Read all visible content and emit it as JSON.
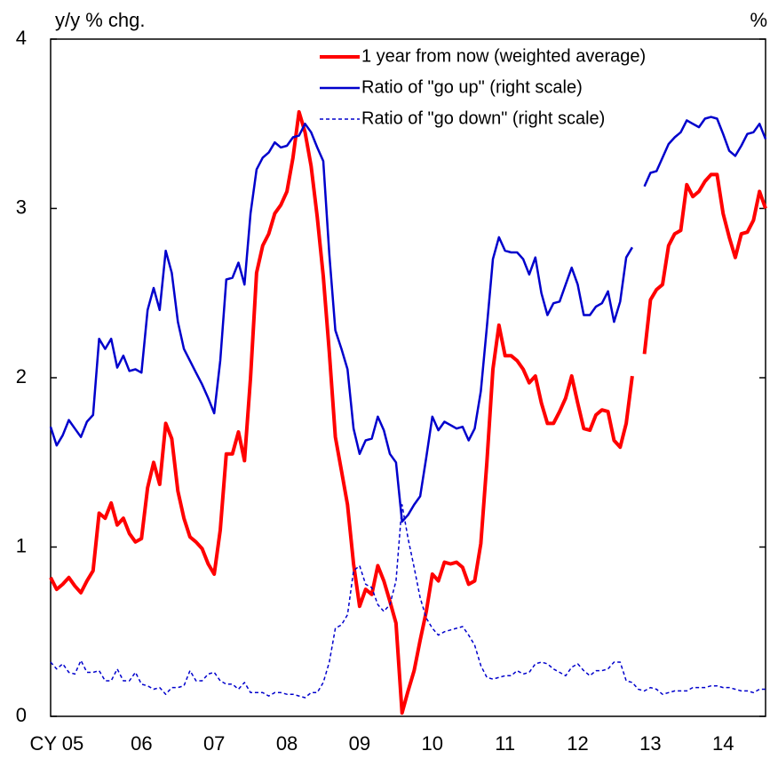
{
  "chart_data": {
    "type": "line",
    "y_label": "y/y % chg.",
    "y2_label": "%",
    "xlim": [
      0,
      118
    ],
    "xticks": [
      {
        "value": 1,
        "label": "CY 05"
      },
      {
        "value": 15,
        "label": "06"
      },
      {
        "value": 27,
        "label": "07"
      },
      {
        "value": 39,
        "label": "08"
      },
      {
        "value": 51,
        "label": "09"
      },
      {
        "value": 63,
        "label": "10"
      },
      {
        "value": 75,
        "label": "11"
      },
      {
        "value": 87,
        "label": "12"
      },
      {
        "value": 99,
        "label": "13"
      },
      {
        "value": 111,
        "label": "14"
      }
    ],
    "ylim": [
      0,
      4
    ],
    "yticks": [
      0,
      1,
      2,
      3,
      4
    ],
    "legend": "upper right",
    "series": [
      {
        "name": "1 year from now (weighted average)",
        "color": "#ff0000",
        "width": 4,
        "line_style": "solid",
        "values": [
          0.82,
          0.75,
          0.78,
          0.82,
          0.77,
          0.73,
          0.8,
          0.86,
          1.2,
          1.17,
          1.26,
          1.13,
          1.17,
          1.08,
          1.03,
          1.05,
          1.35,
          1.5,
          1.37,
          1.73,
          1.64,
          1.33,
          1.17,
          1.06,
          1.03,
          0.99,
          0.9,
          0.84,
          1.1,
          1.55,
          1.55,
          1.68,
          1.51,
          2.0,
          2.62,
          2.78,
          2.85,
          2.97,
          3.02,
          3.1,
          3.3,
          3.57,
          3.45,
          3.25,
          2.95,
          2.6,
          2.15,
          1.65,
          1.45,
          1.25,
          0.9,
          0.65,
          0.75,
          0.72,
          0.89,
          0.8,
          0.68,
          0.55,
          0.02,
          0.15,
          0.27,
          0.45,
          0.62,
          0.84,
          0.8,
          0.91,
          0.9,
          0.91,
          0.88,
          0.78,
          0.8,
          1.02,
          1.5,
          2.05,
          2.31,
          2.13,
          2.13,
          2.1,
          2.05,
          1.97,
          2.01,
          1.85,
          1.73,
          1.73,
          1.8,
          1.88,
          2.01,
          1.85,
          1.7,
          1.69,
          1.78,
          1.81,
          1.8,
          1.63,
          1.59,
          1.73,
          2.01,
          null,
          2.14,
          2.46,
          2.52,
          2.55,
          2.78,
          2.85,
          2.87,
          3.14,
          3.07,
          3.1,
          3.16,
          3.2,
          3.2,
          2.97,
          2.83,
          2.71,
          2.85,
          2.86,
          2.93,
          3.1,
          3.0
        ]
      },
      {
        "name": "Ratio of \"go up\" (right scale)",
        "color": "#0000cc",
        "width": 2.5,
        "line_style": "solid",
        "values": [
          1.71,
          1.6,
          1.66,
          1.75,
          1.7,
          1.65,
          1.74,
          1.78,
          2.23,
          2.17,
          2.23,
          2.06,
          2.13,
          2.04,
          2.05,
          2.03,
          2.4,
          2.53,
          2.4,
          2.75,
          2.62,
          2.33,
          2.17,
          2.1,
          2.03,
          1.96,
          1.88,
          1.79,
          2.1,
          2.58,
          2.59,
          2.68,
          2.55,
          2.97,
          3.23,
          3.3,
          3.33,
          3.39,
          3.36,
          3.37,
          3.42,
          3.43,
          3.5,
          3.45,
          3.36,
          3.28,
          2.73,
          2.28,
          2.17,
          2.05,
          1.7,
          1.55,
          1.63,
          1.64,
          1.77,
          1.69,
          1.55,
          1.5,
          1.15,
          1.19,
          1.25,
          1.3,
          1.53,
          1.77,
          1.69,
          1.74,
          1.72,
          1.7,
          1.71,
          1.63,
          1.7,
          1.92,
          2.3,
          2.7,
          2.83,
          2.75,
          2.74,
          2.74,
          2.7,
          2.61,
          2.71,
          2.5,
          2.37,
          2.44,
          2.45,
          2.55,
          2.65,
          2.55,
          2.37,
          2.37,
          2.42,
          2.44,
          2.51,
          2.33,
          2.45,
          2.71,
          2.77,
          null,
          3.13,
          3.21,
          3.22,
          3.3,
          3.38,
          3.42,
          3.45,
          3.52,
          3.5,
          3.48,
          3.53,
          3.54,
          3.53,
          3.44,
          3.34,
          3.31,
          3.37,
          3.44,
          3.45,
          3.5,
          3.41
        ]
      },
      {
        "name": "Ratio of \"go down\" (right scale)",
        "color": "#0000cc",
        "width": 1.5,
        "line_style": "dashed",
        "values": [
          0.32,
          0.28,
          0.31,
          0.26,
          0.25,
          0.33,
          0.26,
          0.26,
          0.27,
          0.21,
          0.21,
          0.28,
          0.21,
          0.21,
          0.26,
          0.19,
          0.18,
          0.16,
          0.17,
          0.13,
          0.17,
          0.17,
          0.18,
          0.27,
          0.21,
          0.21,
          0.25,
          0.26,
          0.21,
          0.19,
          0.19,
          0.16,
          0.2,
          0.14,
          0.14,
          0.14,
          0.12,
          0.14,
          0.14,
          0.13,
          0.13,
          0.12,
          0.11,
          0.14,
          0.14,
          0.2,
          0.32,
          0.52,
          0.54,
          0.6,
          0.86,
          0.89,
          0.78,
          0.76,
          0.66,
          0.62,
          0.66,
          0.8,
          1.25,
          1.05,
          0.88,
          0.7,
          0.58,
          0.52,
          0.48,
          0.5,
          0.51,
          0.52,
          0.53,
          0.48,
          0.42,
          0.3,
          0.23,
          0.22,
          0.23,
          0.24,
          0.24,
          0.27,
          0.25,
          0.26,
          0.31,
          0.32,
          0.31,
          0.28,
          0.26,
          0.24,
          0.29,
          0.31,
          0.27,
          0.24,
          0.27,
          0.27,
          0.28,
          0.32,
          0.32,
          0.21,
          0.2,
          0.16,
          0.15,
          0.17,
          0.16,
          0.13,
          0.14,
          0.15,
          0.15,
          0.15,
          0.17,
          0.17,
          0.17,
          0.18,
          0.18,
          0.17,
          0.17,
          0.16,
          0.15,
          0.15,
          0.14,
          0.16,
          0.16
        ]
      }
    ]
  }
}
